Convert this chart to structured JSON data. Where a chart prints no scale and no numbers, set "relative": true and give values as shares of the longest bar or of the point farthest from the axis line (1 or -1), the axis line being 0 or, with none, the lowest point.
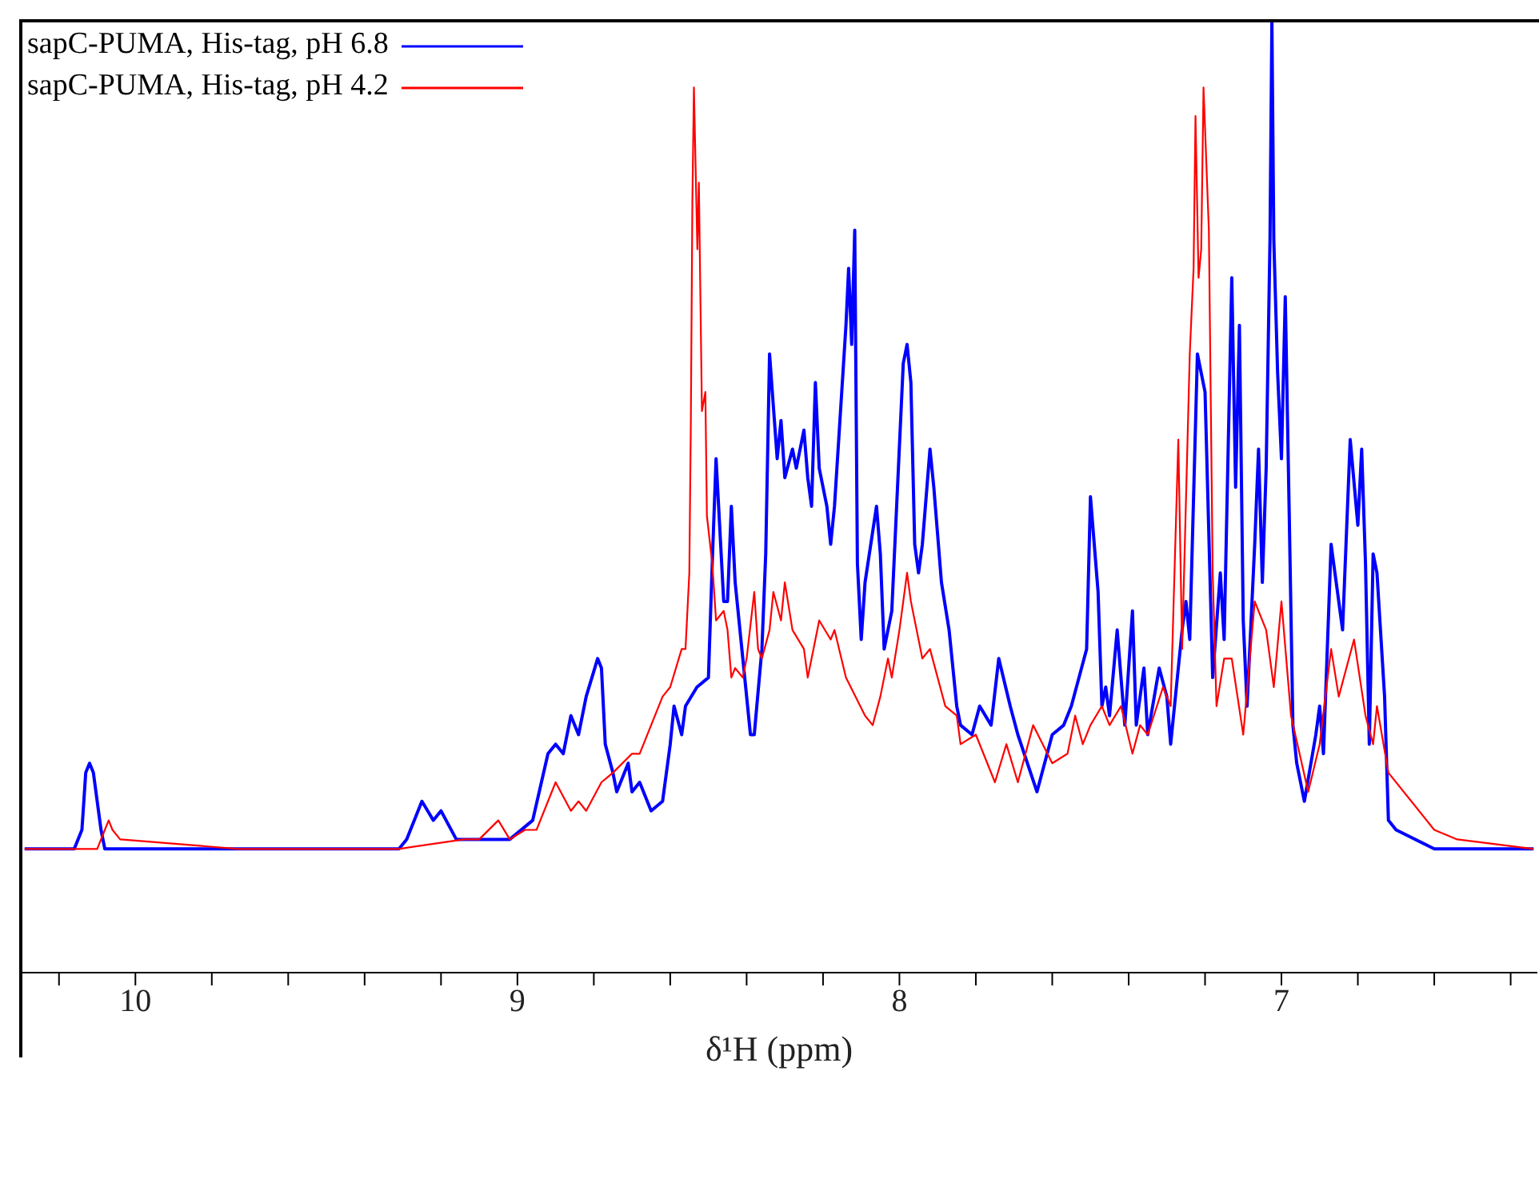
{
  "chart_data": {
    "type": "line",
    "xlabel": "δ¹H (ppm)",
    "relative": true,
    "legend": "top left",
    "xlim": [
      10.3,
      6.33
    ],
    "xticks": [
      {
        "value": 10.2,
        "label": null
      },
      10,
      {
        "value": 9.8,
        "label": null
      },
      {
        "value": 9.6,
        "label": null
      },
      {
        "value": 9.4,
        "label": null
      },
      {
        "value": 9.2,
        "label": null
      },
      9,
      {
        "value": 8.8,
        "label": null
      },
      {
        "value": 8.6,
        "label": null
      },
      {
        "value": 8.4,
        "label": null
      },
      {
        "value": 8.2,
        "label": null
      },
      8,
      {
        "value": 7.8,
        "label": null
      },
      {
        "value": 7.6,
        "label": null
      },
      {
        "value": 7.4,
        "label": null
      },
      {
        "value": 7.2,
        "label": null
      },
      7,
      {
        "value": 6.8,
        "label": null
      },
      {
        "value": 6.6,
        "label": null
      },
      {
        "value": 6.4,
        "label": null
      }
    ],
    "series": [
      {
        "name": "sapC-PUMA, His-tag, pH 6.8",
        "color": "#0000ff",
        "x": [
          10.29,
          10.16,
          10.14,
          10.13,
          10.12,
          10.11,
          10.09,
          10.08,
          9.85,
          9.52,
          9.31,
          9.29,
          9.25,
          9.22,
          9.2,
          9.16,
          9.1,
          9.02,
          8.96,
          8.92,
          8.9,
          8.88,
          8.86,
          8.84,
          8.82,
          8.79,
          8.78,
          8.77,
          8.75,
          8.74,
          8.71,
          8.7,
          8.68,
          8.65,
          8.62,
          8.6,
          8.59,
          8.57,
          8.56,
          8.53,
          8.5,
          8.49,
          8.48,
          8.46,
          8.45,
          8.44,
          8.43,
          8.41,
          8.39,
          8.38,
          8.36,
          8.35,
          8.34,
          8.32,
          8.31,
          8.3,
          8.28,
          8.27,
          8.25,
          8.24,
          8.23,
          8.22,
          8.21,
          8.19,
          8.18,
          8.17,
          8.14,
          8.133,
          8.125,
          8.117,
          8.11,
          8.1,
          8.09,
          8.06,
          8.05,
          8.04,
          8.02,
          7.99,
          7.98,
          7.97,
          7.96,
          7.95,
          7.94,
          7.92,
          7.91,
          7.89,
          7.87,
          7.85,
          7.84,
          7.81,
          7.79,
          7.76,
          7.74,
          7.71,
          7.69,
          7.64,
          7.6,
          7.57,
          7.55,
          7.51,
          7.5,
          7.48,
          7.47,
          7.46,
          7.45,
          7.43,
          7.41,
          7.39,
          7.38,
          7.37,
          7.36,
          7.35,
          7.32,
          7.3,
          7.29,
          7.26,
          7.25,
          7.24,
          7.22,
          7.2,
          7.18,
          7.16,
          7.15,
          7.13,
          7.12,
          7.11,
          7.1,
          7.09,
          7.07,
          7.06,
          7.05,
          7.04,
          7.03,
          7.025,
          7.02,
          7.01,
          7.0,
          6.99,
          6.98,
          6.97,
          6.96,
          6.94,
          6.91,
          6.9,
          6.89,
          6.87,
          6.86,
          6.84,
          6.82,
          6.8,
          6.79,
          6.78,
          6.77,
          6.76,
          6.75,
          6.73,
          6.72,
          6.7,
          6.6,
          6.34
        ],
        "values": [
          0.13,
          0.13,
          0.15,
          0.21,
          0.22,
          0.21,
          0.15,
          0.13,
          0.13,
          0.13,
          0.13,
          0.14,
          0.18,
          0.16,
          0.17,
          0.14,
          0.14,
          0.14,
          0.16,
          0.23,
          0.24,
          0.23,
          0.27,
          0.25,
          0.29,
          0.33,
          0.32,
          0.24,
          0.21,
          0.19,
          0.22,
          0.19,
          0.2,
          0.17,
          0.18,
          0.24,
          0.28,
          0.25,
          0.28,
          0.3,
          0.31,
          0.43,
          0.54,
          0.39,
          0.39,
          0.49,
          0.41,
          0.33,
          0.25,
          0.25,
          0.34,
          0.44,
          0.65,
          0.54,
          0.58,
          0.52,
          0.55,
          0.53,
          0.57,
          0.52,
          0.49,
          0.62,
          0.53,
          0.49,
          0.45,
          0.49,
          0.68,
          0.74,
          0.66,
          0.78,
          0.43,
          0.35,
          0.41,
          0.49,
          0.44,
          0.34,
          0.38,
          0.64,
          0.66,
          0.62,
          0.45,
          0.42,
          0.45,
          0.55,
          0.51,
          0.41,
          0.36,
          0.28,
          0.26,
          0.25,
          0.28,
          0.26,
          0.33,
          0.28,
          0.25,
          0.19,
          0.25,
          0.26,
          0.28,
          0.34,
          0.5,
          0.4,
          0.28,
          0.3,
          0.27,
          0.36,
          0.26,
          0.38,
          0.26,
          0.29,
          0.32,
          0.25,
          0.32,
          0.29,
          0.24,
          0.36,
          0.39,
          0.35,
          0.65,
          0.61,
          0.31,
          0.42,
          0.35,
          0.73,
          0.51,
          0.68,
          0.37,
          0.28,
          0.45,
          0.55,
          0.41,
          0.53,
          0.77,
          1,
          0.77,
          0.63,
          0.54,
          0.71,
          0.49,
          0.26,
          0.22,
          0.18,
          0.25,
          0.28,
          0.23,
          0.45,
          0.42,
          0.36,
          0.56,
          0.47,
          0.55,
          0.43,
          0.24,
          0.44,
          0.42,
          0.29,
          0.16,
          0.15,
          0.13,
          0.13
        ]
      },
      {
        "name": "sapC-PUMA, His-tag, pH 4.2",
        "color": "#ff0000",
        "x": [
          10.29,
          10.1,
          10.08,
          10.07,
          10.06,
          10.04,
          9.73,
          9.31,
          9.14,
          9.1,
          9.05,
          9.02,
          8.98,
          8.95,
          8.9,
          8.86,
          8.84,
          8.82,
          8.78,
          8.75,
          8.7,
          8.68,
          8.62,
          8.6,
          8.57,
          8.56,
          8.55,
          8.546,
          8.542,
          8.538,
          8.529,
          8.525,
          8.517,
          8.508,
          8.504,
          8.49,
          8.48,
          8.46,
          8.45,
          8.44,
          8.43,
          8.41,
          8.4,
          8.38,
          8.37,
          8.36,
          8.34,
          8.33,
          8.31,
          8.3,
          8.28,
          8.25,
          8.24,
          8.21,
          8.18,
          8.17,
          8.14,
          8.09,
          8.07,
          8.05,
          8.03,
          8.02,
          8.0,
          7.98,
          7.97,
          7.94,
          7.92,
          7.9,
          7.88,
          7.85,
          7.84,
          7.8,
          7.75,
          7.72,
          7.69,
          7.65,
          7.6,
          7.56,
          7.54,
          7.52,
          7.5,
          7.47,
          7.45,
          7.42,
          7.39,
          7.37,
          7.35,
          7.31,
          7.29,
          7.27,
          7.26,
          7.24,
          7.23,
          7.225,
          7.217,
          7.21,
          7.204,
          7.19,
          7.18,
          7.17,
          7.15,
          7.13,
          7.1,
          7.07,
          7.04,
          7.02,
          7.0,
          6.975,
          6.93,
          6.9,
          6.87,
          6.85,
          6.81,
          6.78,
          6.76,
          6.75,
          6.72,
          6.66,
          6.6,
          6.54,
          6.34
        ],
        "values": [
          0.13,
          0.13,
          0.15,
          0.16,
          0.15,
          0.14,
          0.13,
          0.13,
          0.14,
          0.14,
          0.16,
          0.14,
          0.15,
          0.15,
          0.2,
          0.17,
          0.18,
          0.17,
          0.2,
          0.21,
          0.23,
          0.23,
          0.29,
          0.3,
          0.34,
          0.34,
          0.42,
          0.58,
          0.81,
          0.93,
          0.76,
          0.83,
          0.59,
          0.61,
          0.48,
          0.43,
          0.37,
          0.38,
          0.36,
          0.31,
          0.32,
          0.31,
          0.33,
          0.4,
          0.34,
          0.33,
          0.36,
          0.4,
          0.37,
          0.41,
          0.36,
          0.34,
          0.31,
          0.37,
          0.35,
          0.36,
          0.31,
          0.27,
          0.26,
          0.29,
          0.33,
          0.31,
          0.36,
          0.42,
          0.39,
          0.33,
          0.34,
          0.31,
          0.28,
          0.27,
          0.24,
          0.25,
          0.2,
          0.24,
          0.2,
          0.26,
          0.22,
          0.23,
          0.27,
          0.24,
          0.26,
          0.28,
          0.26,
          0.28,
          0.23,
          0.26,
          0.25,
          0.3,
          0.28,
          0.56,
          0.34,
          0.65,
          0.74,
          0.9,
          0.73,
          0.76,
          0.93,
          0.78,
          0.42,
          0.28,
          0.33,
          0.33,
          0.25,
          0.39,
          0.36,
          0.3,
          0.39,
          0.27,
          0.19,
          0.24,
          0.34,
          0.29,
          0.35,
          0.27,
          0.24,
          0.28,
          0.21,
          0.18,
          0.15,
          0.14,
          0.13
        ]
      }
    ]
  }
}
